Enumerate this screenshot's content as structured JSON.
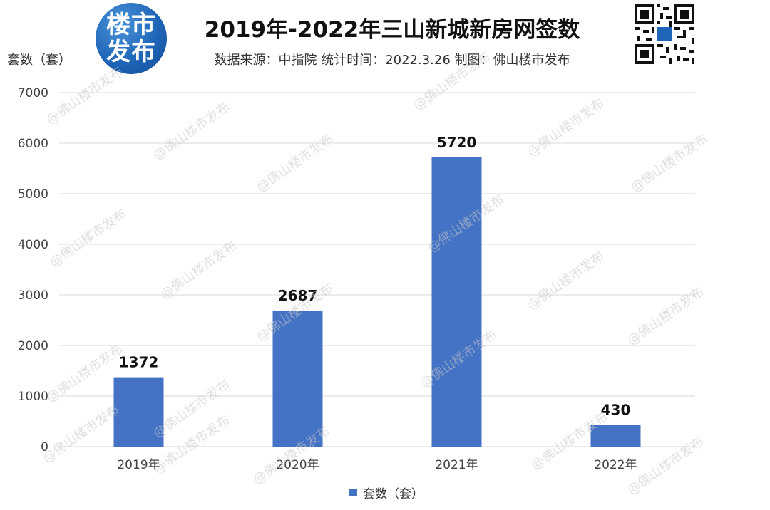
{
  "header": {
    "logo_line1": "楼市",
    "logo_line2": "发布",
    "title": "2019年-2022年三山新城新房网签数",
    "subtitle": "数据来源：中指院 统计时间：2022.3.26 制图：佛山楼市发布",
    "y_unit": "套数（套）"
  },
  "legend": {
    "label": "套数（套）"
  },
  "watermark": "@佛山楼市发布",
  "colors": {
    "bar": "#4472c4",
    "grid": "#d9d9d9",
    "logo": "#1f66b8"
  },
  "chart_data": {
    "type": "bar",
    "categories": [
      "2019年",
      "2020年",
      "2021年",
      "2022年"
    ],
    "series": [
      {
        "name": "套数（套）",
        "values": [
          1372,
          2687,
          5720,
          430
        ]
      }
    ],
    "title": "2019年-2022年三山新城新房网签数",
    "xlabel": "",
    "ylabel": "套数（套）",
    "ylim": [
      0,
      7000
    ],
    "yticks": [
      0,
      1000,
      2000,
      3000,
      4000,
      5000,
      6000,
      7000
    ],
    "grid": true,
    "legend_position": "bottom"
  }
}
